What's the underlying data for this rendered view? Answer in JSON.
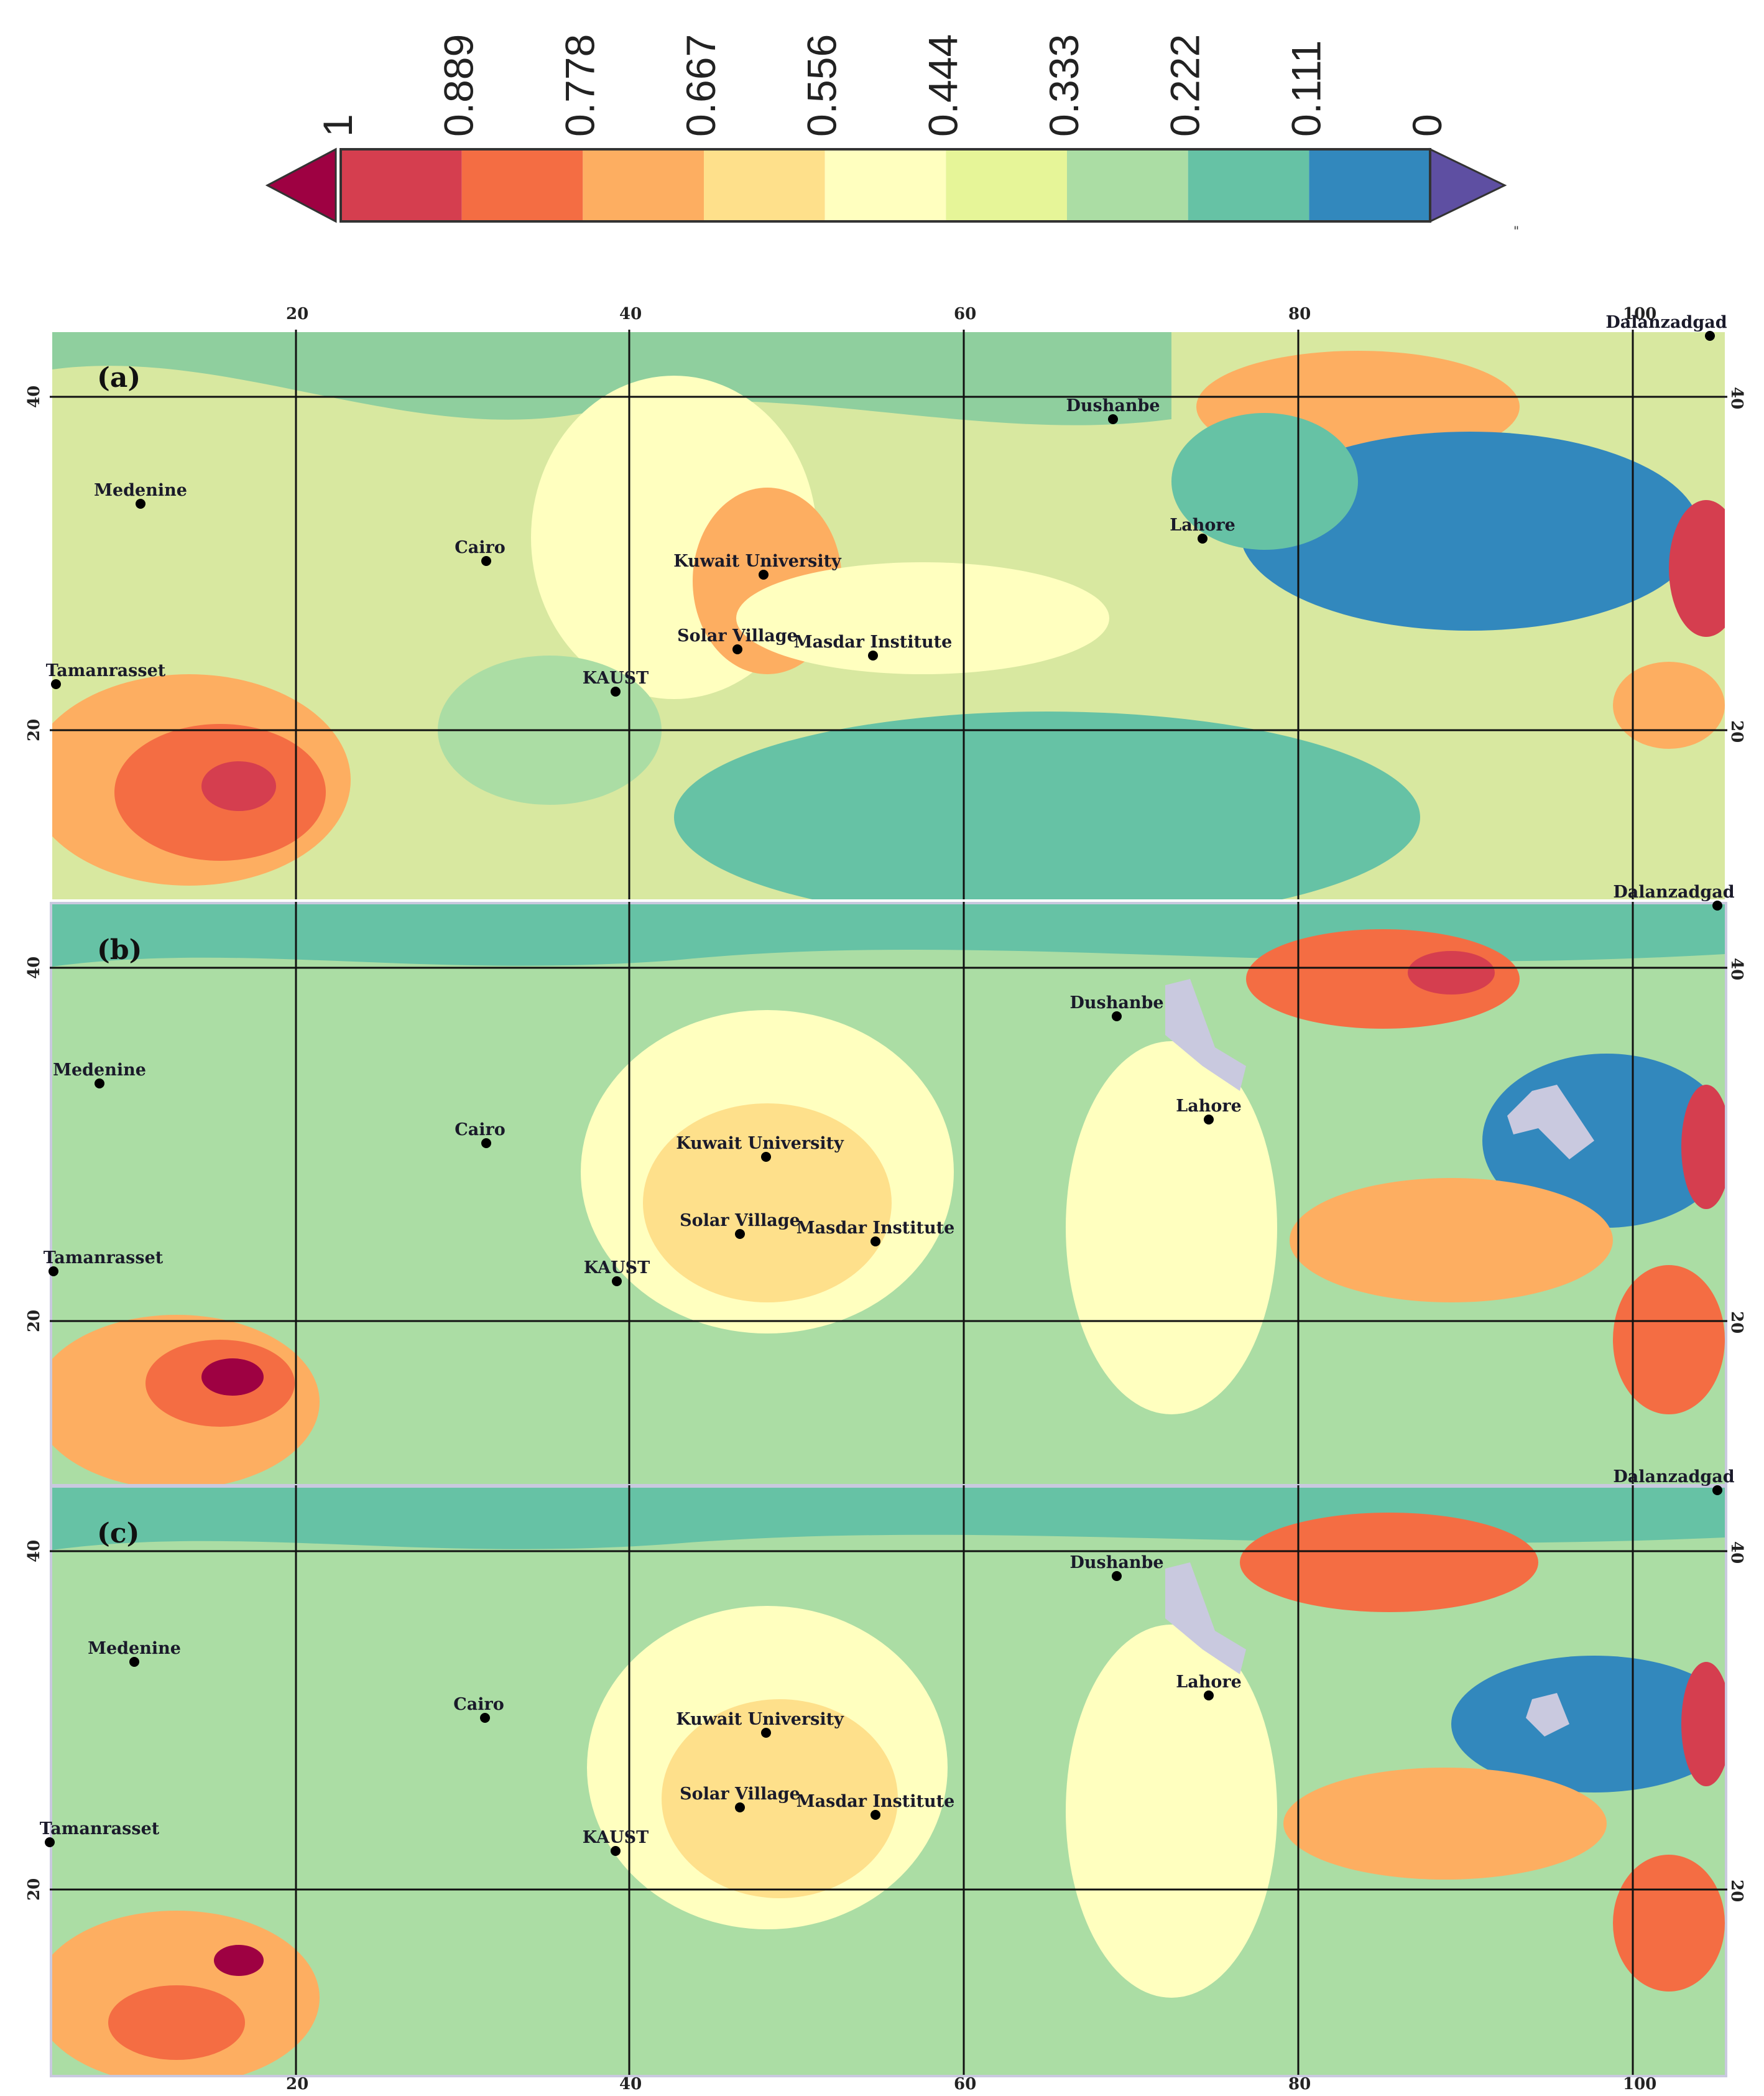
{
  "colorbar": {
    "ticks": [
      "1",
      "0.889",
      "0.778",
      "0.667",
      "0.556",
      "0.444",
      "0.333",
      "0.222",
      "0.111",
      "0"
    ],
    "colors": [
      "#d53e4f",
      "#f46d43",
      "#fdae61",
      "#fee08b",
      "#ffffbf",
      "#e6f598",
      "#abdda4",
      "#66c2a5",
      "#3288bd"
    ],
    "over_color": "#9e0142",
    "under_color": "#5e4fa2",
    "note": "\""
  },
  "axes": {
    "lon_ticks": [
      "20",
      "40",
      "60",
      "80",
      "100"
    ],
    "lat_ticks": [
      "40",
      "20"
    ]
  },
  "panels": [
    {
      "tag": "(a)"
    },
    {
      "tag": "(b)"
    },
    {
      "tag": "(c)"
    }
  ],
  "sites": [
    {
      "name": "Dalanzadgad"
    },
    {
      "name": "Dushanbe"
    },
    {
      "name": "Medenine"
    },
    {
      "name": "Lahore"
    },
    {
      "name": "Cairo"
    },
    {
      "name": "Kuwait University"
    },
    {
      "name": "Solar Village"
    },
    {
      "name": "Masdar Institute"
    },
    {
      "name": "Tamanrasset"
    },
    {
      "name": "KAUST"
    }
  ]
}
